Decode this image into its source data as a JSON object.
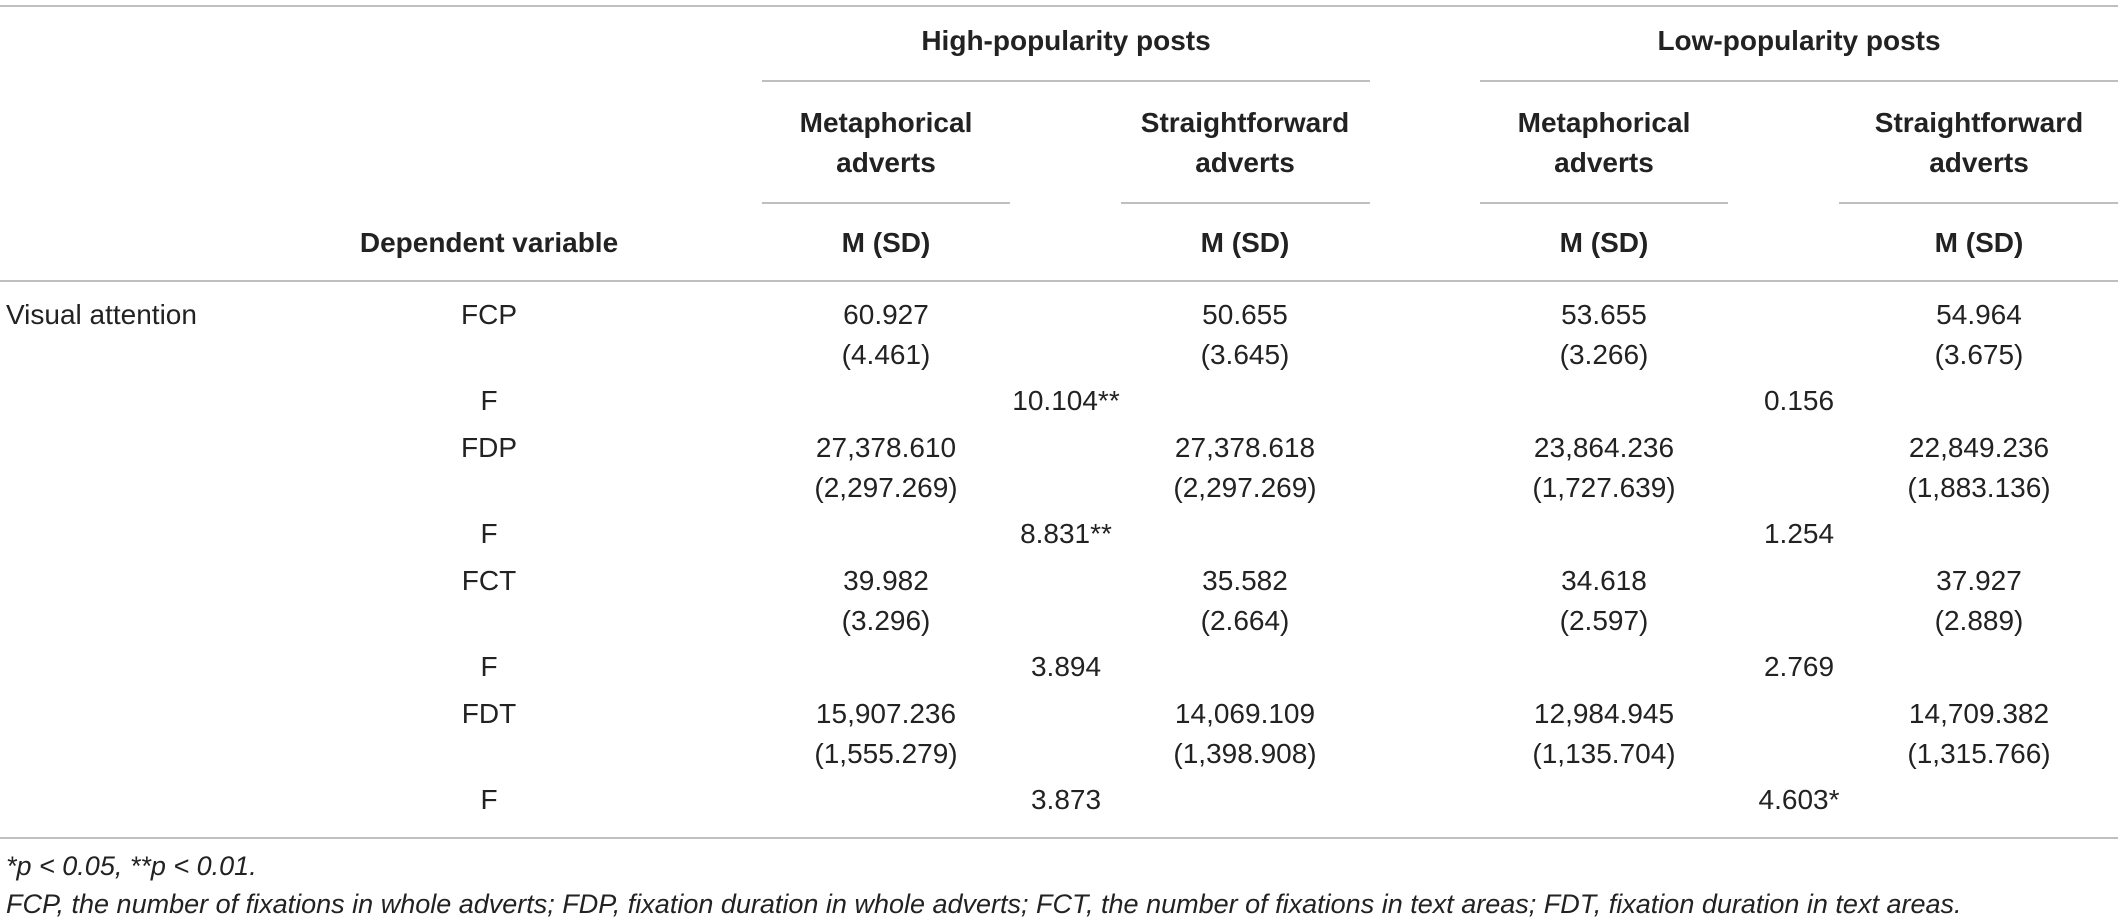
{
  "header": {
    "group_high": "High-popularity posts",
    "group_low": "Low-popularity posts",
    "sub_metaphorical": [
      "Metaphorical",
      "adverts"
    ],
    "sub_straightforward": [
      "Straightforward",
      "adverts"
    ],
    "stat_label": "M (SD)",
    "dv_label": "Dependent variable"
  },
  "section_label": "Visual attention",
  "rows": [
    {
      "label": "FCP",
      "hm": "60.927",
      "hm_sd": "(4.461)",
      "hs": "50.655",
      "hs_sd": "(3.645)",
      "lm": "53.655",
      "lm_sd": "(3.266)",
      "ls": "54.964",
      "ls_sd": "(3.675)",
      "f_label": "F",
      "f_high": "10.104**",
      "f_low": "0.156"
    },
    {
      "label": "FDP",
      "hm": "27,378.610",
      "hm_sd": "(2,297.269)",
      "hs": "27,378.618",
      "hs_sd": "(2,297.269)",
      "lm": "23,864.236",
      "lm_sd": "(1,727.639)",
      "ls": "22,849.236",
      "ls_sd": "(1,883.136)",
      "f_label": "F",
      "f_high": "8.831**",
      "f_low": "1.254"
    },
    {
      "label": "FCT",
      "hm": "39.982",
      "hm_sd": "(3.296)",
      "hs": "35.582",
      "hs_sd": "(2.664)",
      "lm": "34.618",
      "lm_sd": "(2.597)",
      "ls": "37.927",
      "ls_sd": "(2.889)",
      "f_label": "F",
      "f_high": "3.894",
      "f_low": "2.769"
    },
    {
      "label": "FDT",
      "hm": "15,907.236",
      "hm_sd": "(1,555.279)",
      "hs": "14,069.109",
      "hs_sd": "(1,398.908)",
      "lm": "12,984.945",
      "lm_sd": "(1,135.704)",
      "ls": "14,709.382",
      "ls_sd": "(1,315.766)",
      "f_label": "F",
      "f_high": "3.873",
      "f_low": "4.603*"
    }
  ],
  "notes": [
    "*p < 0.05, **p < 0.01.",
    "FCP, the number of fixations in whole adverts; FDP, fixation duration in whole adverts; FCT, the number of fixations in text areas; FDT, fixation duration in text areas."
  ]
}
